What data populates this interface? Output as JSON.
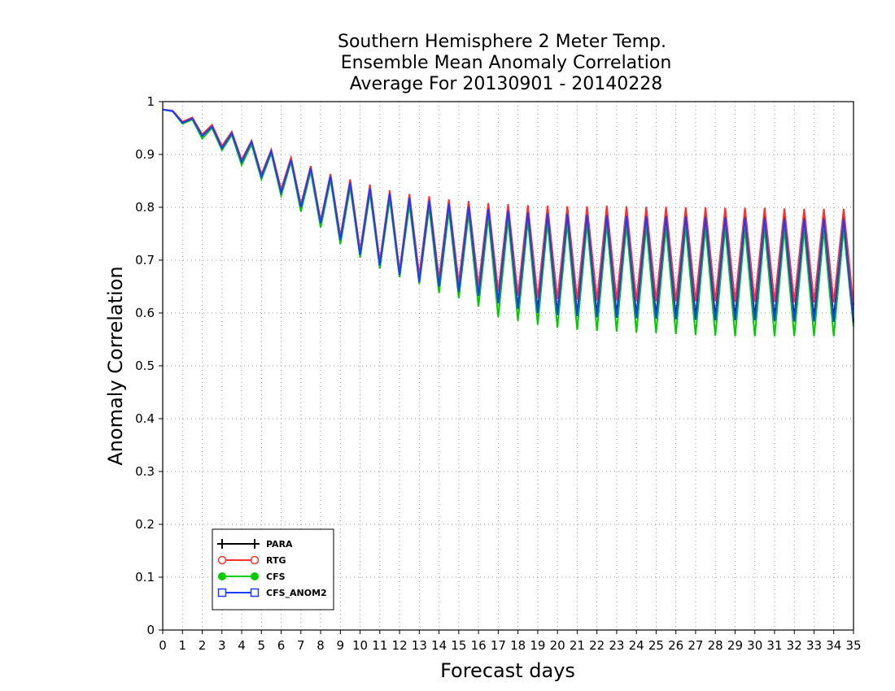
{
  "chart_data": {
    "type": "line",
    "title": [
      "Southern Hemisphere 2 Meter Temp.",
      "Ensemble Mean Anomaly Correlation",
      "Average For 20130901 - 20140228"
    ],
    "xlabel": "Forecast days",
    "ylabel": "Anomaly Correlation",
    "xlim": [
      0,
      35
    ],
    "ylim": [
      0,
      1
    ],
    "x_ticks": [
      0,
      1,
      2,
      3,
      4,
      5,
      6,
      7,
      8,
      9,
      10,
      11,
      12,
      13,
      14,
      15,
      16,
      17,
      18,
      19,
      20,
      21,
      22,
      23,
      24,
      25,
      26,
      27,
      28,
      29,
      30,
      31,
      32,
      33,
      34,
      35
    ],
    "y_ticks": [
      "0",
      "0.1",
      "0.2",
      "0.3",
      "0.4",
      "0.5",
      "0.6",
      "0.7",
      "0.8",
      "0.9",
      "1"
    ],
    "grid": true,
    "legend_position": "bottom-left",
    "x": [
      0,
      0.5,
      1,
      1.5,
      2,
      2.5,
      3,
      3.5,
      4,
      4.5,
      5,
      5.5,
      6,
      6.5,
      7,
      7.5,
      8,
      8.5,
      9,
      9.5,
      10,
      10.5,
      11,
      11.5,
      12,
      12.5,
      13,
      13.5,
      14,
      14.5,
      15,
      15.5,
      16,
      16.5,
      17,
      17.5,
      18,
      18.5,
      19,
      19.5,
      20,
      20.5,
      21,
      21.5,
      22,
      22.5,
      23,
      23.5,
      24,
      24.5,
      25,
      25.5,
      26,
      26.5,
      27,
      27.5,
      28,
      28.5,
      29,
      29.5,
      30,
      30.5,
      31,
      31.5,
      32,
      32.5,
      33,
      33.5,
      34,
      34.5,
      35
    ],
    "series": [
      {
        "name": "PARA",
        "color": "#000000",
        "marker": "plus",
        "values": [
          0.985,
          0.982,
          0.96,
          0.968,
          0.935,
          0.953,
          0.912,
          0.94,
          0.885,
          0.923,
          0.858,
          0.906,
          0.828,
          0.89,
          0.798,
          0.873,
          0.765,
          0.857,
          0.735,
          0.845,
          0.708,
          0.835,
          0.685,
          0.823,
          0.668,
          0.815,
          0.66,
          0.81,
          0.65,
          0.805,
          0.64,
          0.8,
          0.633,
          0.793,
          0.62,
          0.79,
          0.61,
          0.787,
          0.605,
          0.786,
          0.6,
          0.786,
          0.598,
          0.785,
          0.597,
          0.786,
          0.596,
          0.785,
          0.595,
          0.784,
          0.594,
          0.784,
          0.593,
          0.785,
          0.593,
          0.784,
          0.592,
          0.783,
          0.592,
          0.783,
          0.592,
          0.784,
          0.591,
          0.783,
          0.591,
          0.782,
          0.59,
          0.782,
          0.59,
          0.782,
          0.585
        ]
      },
      {
        "name": "RTG",
        "color": "#ff3030",
        "marker": "open-circle",
        "values": [
          0.985,
          0.983,
          0.962,
          0.97,
          0.938,
          0.956,
          0.916,
          0.943,
          0.89,
          0.926,
          0.862,
          0.909,
          0.834,
          0.894,
          0.805,
          0.878,
          0.775,
          0.863,
          0.745,
          0.853,
          0.718,
          0.843,
          0.698,
          0.832,
          0.68,
          0.825,
          0.672,
          0.821,
          0.665,
          0.815,
          0.657,
          0.812,
          0.651,
          0.808,
          0.64,
          0.806,
          0.633,
          0.804,
          0.628,
          0.803,
          0.626,
          0.802,
          0.625,
          0.802,
          0.624,
          0.803,
          0.624,
          0.802,
          0.623,
          0.801,
          0.623,
          0.801,
          0.622,
          0.8,
          0.622,
          0.8,
          0.622,
          0.799,
          0.621,
          0.799,
          0.621,
          0.799,
          0.621,
          0.798,
          0.62,
          0.797,
          0.62,
          0.797,
          0.62,
          0.797,
          0.615
        ]
      },
      {
        "name": "CFS",
        "color": "#00cc00",
        "marker": "filled-circle",
        "values": [
          0.985,
          0.982,
          0.958,
          0.966,
          0.93,
          0.95,
          0.908,
          0.937,
          0.88,
          0.919,
          0.853,
          0.902,
          0.822,
          0.886,
          0.792,
          0.868,
          0.762,
          0.852,
          0.73,
          0.838,
          0.705,
          0.827,
          0.685,
          0.815,
          0.668,
          0.805,
          0.655,
          0.8,
          0.638,
          0.793,
          0.628,
          0.788,
          0.612,
          0.782,
          0.592,
          0.778,
          0.585,
          0.775,
          0.578,
          0.772,
          0.572,
          0.77,
          0.568,
          0.769,
          0.566,
          0.768,
          0.565,
          0.766,
          0.563,
          0.764,
          0.562,
          0.762,
          0.56,
          0.763,
          0.558,
          0.762,
          0.557,
          0.761,
          0.556,
          0.76,
          0.556,
          0.761,
          0.556,
          0.759,
          0.556,
          0.758,
          0.556,
          0.757,
          0.556,
          0.758,
          0.575
        ]
      },
      {
        "name": "CFS_ANOM2",
        "color": "#1a3cff",
        "marker": "open-square",
        "values": [
          0.985,
          0.982,
          0.96,
          0.968,
          0.935,
          0.953,
          0.912,
          0.94,
          0.886,
          0.924,
          0.858,
          0.906,
          0.828,
          0.89,
          0.8,
          0.874,
          0.77,
          0.859,
          0.738,
          0.847,
          0.71,
          0.836,
          0.69,
          0.826,
          0.672,
          0.818,
          0.658,
          0.813,
          0.65,
          0.807,
          0.64,
          0.802,
          0.632,
          0.797,
          0.618,
          0.794,
          0.608,
          0.79,
          0.6,
          0.788,
          0.596,
          0.787,
          0.594,
          0.786,
          0.592,
          0.785,
          0.591,
          0.784,
          0.59,
          0.783,
          0.589,
          0.782,
          0.588,
          0.782,
          0.587,
          0.781,
          0.586,
          0.78,
          0.586,
          0.78,
          0.586,
          0.779,
          0.585,
          0.778,
          0.584,
          0.777,
          0.584,
          0.777,
          0.583,
          0.777,
          0.582
        ]
      }
    ]
  }
}
